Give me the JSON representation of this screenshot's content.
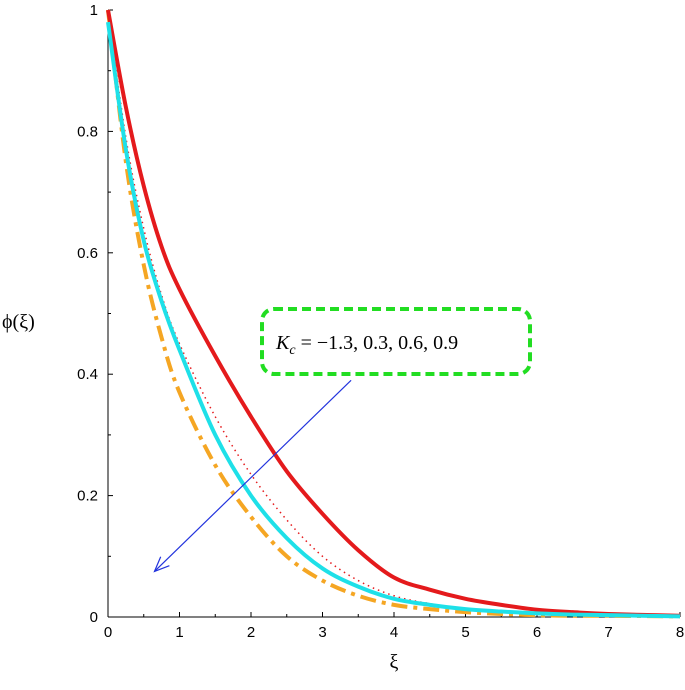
{
  "chart_data": {
    "type": "line",
    "title": "",
    "xlabel": "ξ",
    "ylabel": "ϕ(ξ)",
    "xlim": [
      0,
      8
    ],
    "ylim": [
      0,
      1
    ],
    "x_ticks": [
      0,
      1,
      2,
      3,
      4,
      5,
      6,
      7,
      8
    ],
    "y_ticks": [
      0,
      0.2,
      0.4,
      0.6,
      0.8,
      1
    ],
    "x_tick_labels": [
      "0",
      "1",
      "2",
      "3",
      "4",
      "5",
      "6",
      "7",
      "8"
    ],
    "y_tick_labels": [
      "0",
      "0.2",
      "0.4",
      "0.6",
      "0.8",
      "1"
    ],
    "grid": false,
    "x": [
      0,
      0.25,
      0.5,
      0.75,
      1,
      1.5,
      2,
      2.5,
      3,
      3.5,
      4,
      4.5,
      5,
      5.5,
      6,
      6.5,
      7,
      8
    ],
    "series": [
      {
        "color": "#e41a1c",
        "style": "solid",
        "values": [
          1.0,
          0.84,
          0.71,
          0.61,
          0.54,
          0.43,
          0.33,
          0.24,
          0.17,
          0.11,
          0.065,
          0.045,
          0.03,
          0.02,
          0.012,
          0.008,
          0.005,
          0.002
        ]
      },
      {
        "color": "#e41a1c",
        "style": "dotted",
        "values": [
          1.0,
          0.79,
          0.64,
          0.53,
          0.45,
          0.33,
          0.235,
          0.16,
          0.1,
          0.06,
          0.035,
          0.022,
          0.014,
          0.009,
          0.006,
          0.004,
          0.003,
          0.001
        ]
      },
      {
        "color": "#1ee0e8",
        "style": "solid",
        "values": [
          0.98,
          0.77,
          0.62,
          0.52,
          0.44,
          0.3,
          0.2,
          0.13,
          0.08,
          0.05,
          0.03,
          0.02,
          0.013,
          0.009,
          0.006,
          0.004,
          0.003,
          0.001
        ]
      },
      {
        "color": "#f5a623",
        "style": "dashdot",
        "values": [
          1.0,
          0.75,
          0.58,
          0.46,
          0.37,
          0.25,
          0.165,
          0.1,
          0.06,
          0.035,
          0.02,
          0.013,
          0.008,
          0.005,
          0.003,
          0.002,
          0.002,
          0.001
        ]
      }
    ],
    "annotation": {
      "text_main": "K",
      "text_sub": "c",
      "text_rest": " = −1.3, 0.3, 0.6, 0.9",
      "box_border_color": "#22dd22",
      "arrow_color": "#2233dd",
      "arrow_from": [
        3.4,
        0.39
      ],
      "arrow_to": [
        0.65,
        0.075
      ]
    }
  }
}
